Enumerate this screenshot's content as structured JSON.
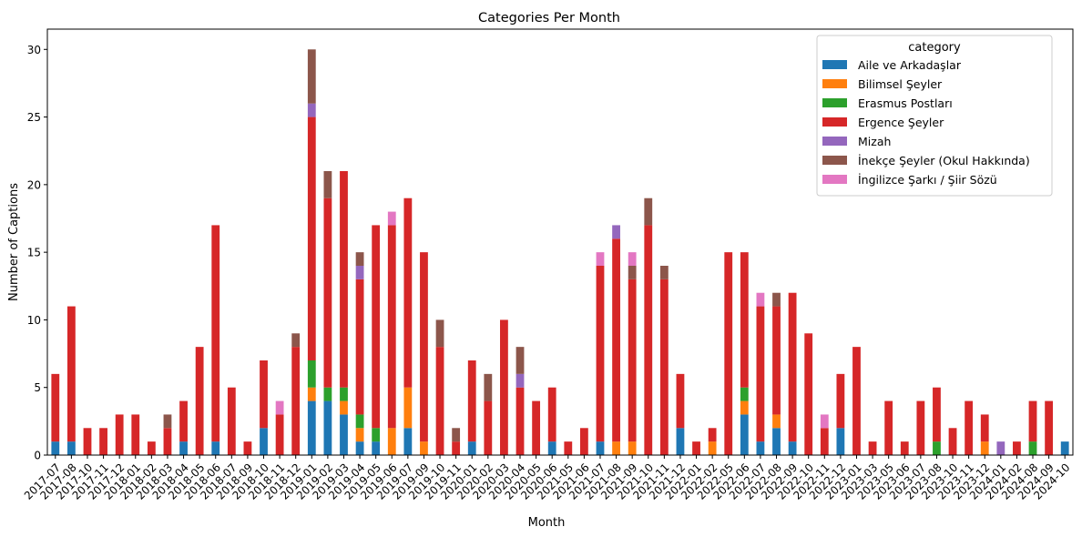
{
  "chart_data": {
    "type": "bar",
    "stacked": true,
    "title": "Categories Per Month",
    "xlabel": "Month",
    "ylabel": "Number of Captions",
    "ylim": [
      0,
      31.5
    ],
    "yticks": [
      0,
      5,
      10,
      15,
      20,
      25,
      30
    ],
    "grid": false,
    "legend": {
      "title": "category",
      "placement": "top-right"
    },
    "categories": [
      "2017-07",
      "2017-08",
      "2017-10",
      "2017-11",
      "2017-12",
      "2018-01",
      "2018-02",
      "2018-03",
      "2018-04",
      "2018-05",
      "2018-06",
      "2018-07",
      "2018-09",
      "2018-10",
      "2018-11",
      "2018-12",
      "2019-01",
      "2019-02",
      "2019-03",
      "2019-04",
      "2019-05",
      "2019-06",
      "2019-07",
      "2019-09",
      "2019-10",
      "2019-11",
      "2020-01",
      "2020-02",
      "2020-03",
      "2020-04",
      "2020-05",
      "2020-06",
      "2021-05",
      "2021-06",
      "2021-07",
      "2021-08",
      "2021-09",
      "2021-10",
      "2021-11",
      "2021-12",
      "2022-01",
      "2022-02",
      "2022-05",
      "2022-06",
      "2022-07",
      "2022-08",
      "2022-09",
      "2022-10",
      "2022-11",
      "2022-12",
      "2023-01",
      "2023-03",
      "2023-05",
      "2023-06",
      "2023-07",
      "2023-08",
      "2023-10",
      "2023-11",
      "2023-12",
      "2024-01",
      "2024-02",
      "2024-08",
      "2024-09",
      "2024-10"
    ],
    "series": [
      {
        "name": "Aile ve Arkadaşlar",
        "color": "#1f77b4",
        "values": [
          1,
          1,
          0,
          0,
          0,
          0,
          0,
          0,
          1,
          0,
          1,
          0,
          0,
          2,
          0,
          0,
          4,
          4,
          3,
          1,
          1,
          0,
          2,
          0,
          0,
          0,
          1,
          0,
          0,
          0,
          0,
          1,
          0,
          0,
          1,
          0,
          0,
          0,
          0,
          2,
          0,
          0,
          0,
          3,
          1,
          2,
          1,
          0,
          0,
          2,
          0,
          0,
          0,
          0,
          0,
          0,
          0,
          0,
          0,
          0,
          0,
          0,
          0,
          1
        ]
      },
      {
        "name": "Bilimsel Şeyler",
        "color": "#ff7f0e",
        "values": [
          0,
          0,
          0,
          0,
          0,
          0,
          0,
          0,
          0,
          0,
          0,
          0,
          0,
          0,
          0,
          0,
          1,
          0,
          1,
          1,
          0,
          2,
          3,
          1,
          0,
          0,
          0,
          0,
          0,
          0,
          0,
          0,
          0,
          0,
          0,
          1,
          1,
          0,
          0,
          0,
          0,
          1,
          0,
          1,
          0,
          1,
          0,
          0,
          0,
          0,
          0,
          0,
          0,
          0,
          0,
          0,
          0,
          0,
          1,
          0,
          0,
          0,
          0,
          0
        ]
      },
      {
        "name": "Erasmus Postları",
        "color": "#2ca02c",
        "values": [
          0,
          0,
          0,
          0,
          0,
          0,
          0,
          0,
          0,
          0,
          0,
          0,
          0,
          0,
          0,
          0,
          2,
          1,
          1,
          1,
          1,
          0,
          0,
          0,
          0,
          0,
          0,
          0,
          0,
          0,
          0,
          0,
          0,
          0,
          0,
          0,
          0,
          0,
          0,
          0,
          0,
          0,
          0,
          1,
          0,
          0,
          0,
          0,
          0,
          0,
          0,
          0,
          0,
          0,
          0,
          1,
          0,
          0,
          0,
          0,
          0,
          1,
          0,
          0
        ]
      },
      {
        "name": "Ergence Şeyler",
        "color": "#d62728",
        "values": [
          5,
          10,
          2,
          2,
          3,
          3,
          1,
          2,
          3,
          8,
          16,
          5,
          1,
          5,
          3,
          8,
          18,
          14,
          16,
          10,
          15,
          15,
          14,
          14,
          8,
          1,
          6,
          4,
          10,
          5,
          4,
          4,
          1,
          2,
          13,
          15,
          12,
          17,
          13,
          4,
          1,
          1,
          15,
          10,
          10,
          8,
          11,
          9,
          2,
          4,
          8,
          1,
          4,
          1,
          4,
          4,
          2,
          4,
          2,
          0,
          1,
          3,
          4,
          0
        ]
      },
      {
        "name": "Mizah",
        "color": "#9467bd",
        "values": [
          0,
          0,
          0,
          0,
          0,
          0,
          0,
          0,
          0,
          0,
          0,
          0,
          0,
          0,
          0,
          0,
          1,
          0,
          0,
          1,
          0,
          0,
          0,
          0,
          0,
          0,
          0,
          0,
          0,
          1,
          0,
          0,
          0,
          0,
          0,
          1,
          0,
          0,
          0,
          0,
          0,
          0,
          0,
          0,
          0,
          0,
          0,
          0,
          0,
          0,
          0,
          0,
          0,
          0,
          0,
          0,
          0,
          0,
          0,
          1,
          0,
          0,
          0,
          0
        ]
      },
      {
        "name": "İnekçe Şeyler (Okul Hakkında)",
        "color": "#8c564b",
        "values": [
          0,
          0,
          0,
          0,
          0,
          0,
          0,
          1,
          0,
          0,
          0,
          0,
          0,
          0,
          0,
          1,
          4,
          2,
          0,
          1,
          0,
          0,
          0,
          0,
          2,
          1,
          0,
          2,
          0,
          2,
          0,
          0,
          0,
          0,
          0,
          0,
          1,
          2,
          1,
          0,
          0,
          0,
          0,
          0,
          0,
          1,
          0,
          0,
          0,
          0,
          0,
          0,
          0,
          0,
          0,
          0,
          0,
          0,
          0,
          0,
          0,
          0,
          0,
          0
        ]
      },
      {
        "name": "İngilizce Şarkı / Şiir Sözü",
        "color": "#e377c2",
        "values": [
          0,
          0,
          0,
          0,
          0,
          0,
          0,
          0,
          0,
          0,
          0,
          0,
          0,
          0,
          1,
          0,
          0,
          0,
          0,
          0,
          0,
          1,
          0,
          0,
          0,
          0,
          0,
          0,
          0,
          0,
          0,
          0,
          0,
          0,
          1,
          0,
          1,
          0,
          0,
          0,
          0,
          0,
          0,
          0,
          1,
          0,
          0,
          0,
          1,
          0,
          0,
          0,
          0,
          0,
          0,
          0,
          0,
          0,
          0,
          0,
          0,
          0,
          0,
          0
        ]
      }
    ]
  }
}
